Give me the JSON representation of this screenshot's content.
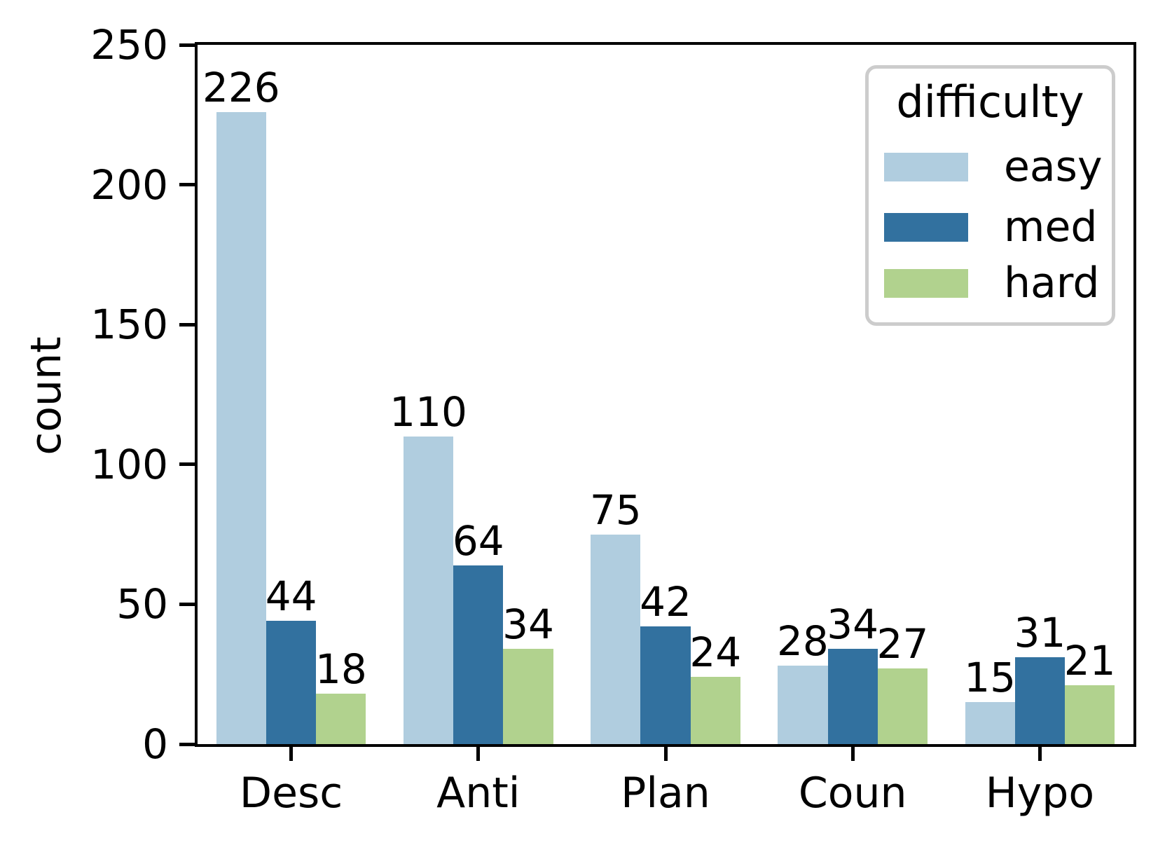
{
  "chart_data": {
    "type": "bar",
    "title": "",
    "xlabel": "",
    "ylabel": "count",
    "categories": [
      "Desc",
      "Anti",
      "Plan",
      "Coun",
      "Hypo"
    ],
    "series": [
      {
        "name": "easy",
        "color": "#b0cddf",
        "values": [
          226,
          110,
          75,
          28,
          15
        ]
      },
      {
        "name": "med",
        "color": "#32719f",
        "values": [
          44,
          64,
          42,
          34,
          31
        ]
      },
      {
        "name": "hard",
        "color": "#b1d28e",
        "values": [
          18,
          34,
          24,
          27,
          21
        ]
      }
    ],
    "ylim": [
      0,
      250
    ],
    "yticks": [
      0,
      50,
      100,
      150,
      200,
      250
    ],
    "bar_labels_shown": true,
    "grid": false,
    "legend": {
      "title": "difficulty",
      "position": "upper-right"
    },
    "colors": {
      "axis": "#000000",
      "legend_border": "#cccccc",
      "background": "#ffffff"
    }
  }
}
